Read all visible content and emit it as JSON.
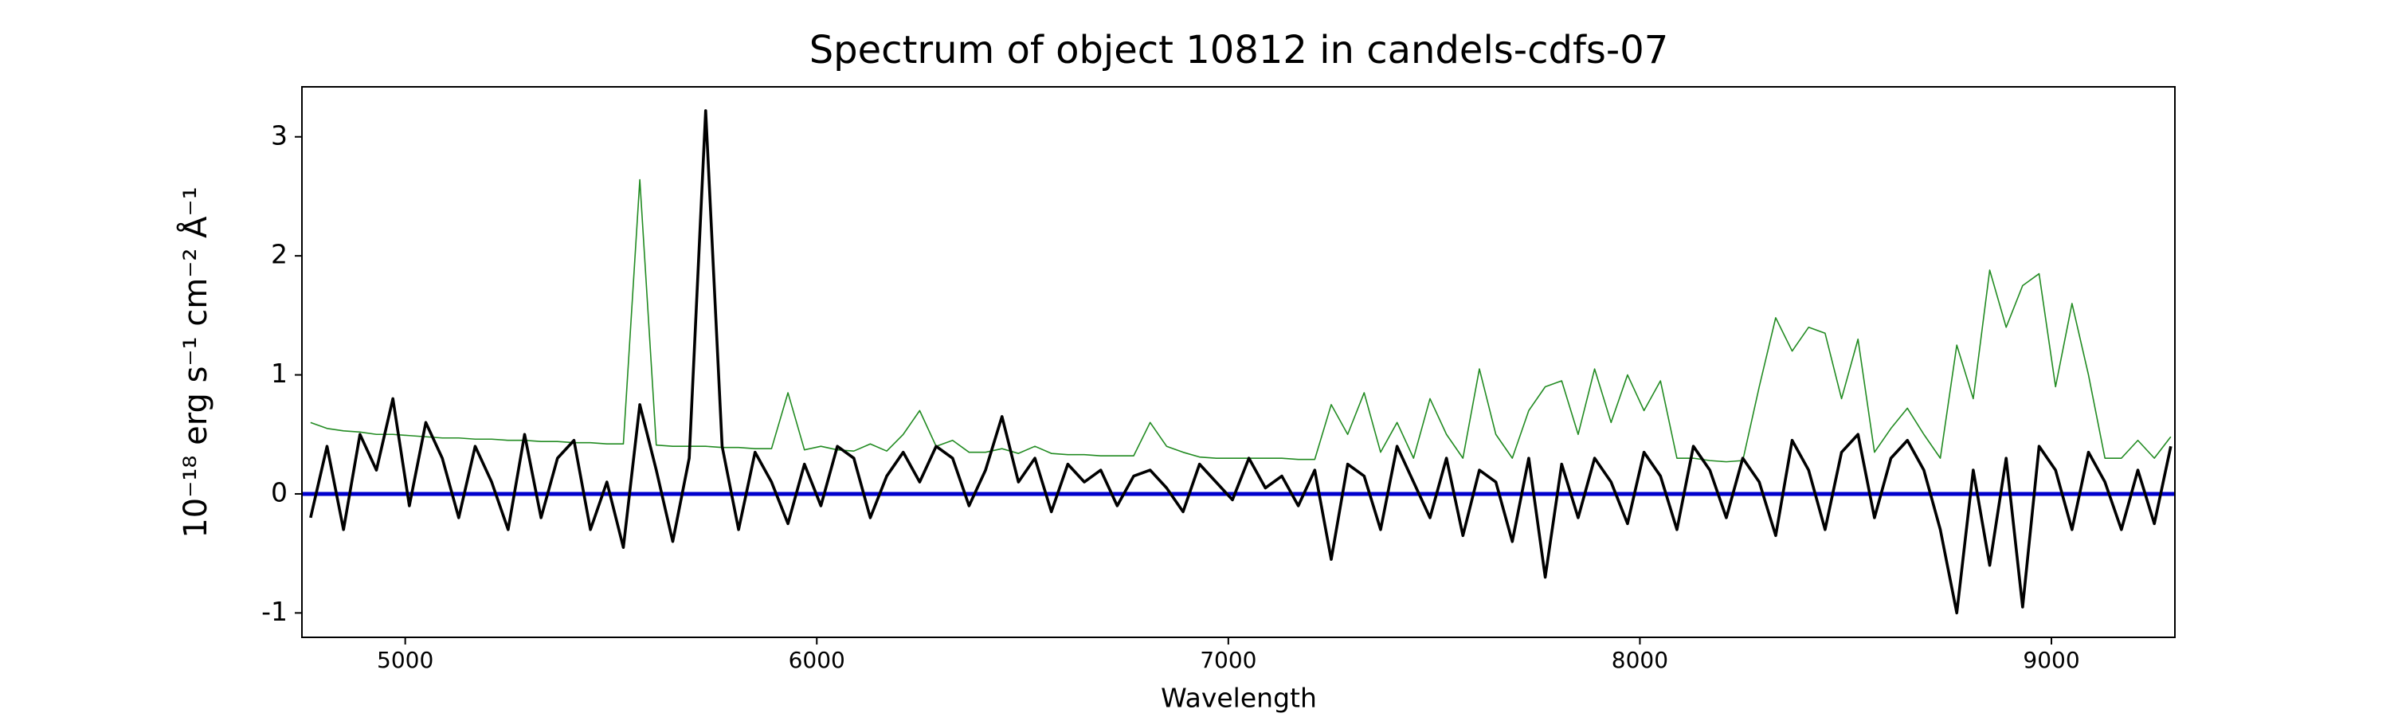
{
  "chart_data": {
    "type": "line",
    "title": "Spectrum of object 10812 in candels-cdfs-07",
    "x_label": "Wavelength",
    "y_label": "10⁻¹⁸ erg s⁻¹ cm⁻² Å⁻¹",
    "xlim": [
      4749,
      9300
    ],
    "ylim": [
      -1.205,
      3.42
    ],
    "xticks": [
      5000,
      6000,
      7000,
      8000,
      9000
    ],
    "yticks": [
      -1,
      0,
      1,
      2,
      3
    ],
    "hline": {
      "y": 0,
      "color": "#0000cc"
    },
    "x": [
      4770,
      4810,
      4850,
      4890,
      4930,
      4970,
      5010,
      5050,
      5090,
      5130,
      5170,
      5210,
      5250,
      5290,
      5330,
      5370,
      5410,
      5450,
      5490,
      5530,
      5570,
      5610,
      5650,
      5690,
      5730,
      5770,
      5810,
      5850,
      5890,
      5930,
      5970,
      6010,
      6050,
      6090,
      6130,
      6170,
      6210,
      6250,
      6290,
      6330,
      6370,
      6410,
      6450,
      6490,
      6530,
      6570,
      6610,
      6650,
      6690,
      6730,
      6770,
      6810,
      6850,
      6890,
      6930,
      6970,
      7010,
      7050,
      7090,
      7130,
      7170,
      7210,
      7250,
      7290,
      7330,
      7370,
      7410,
      7450,
      7490,
      7530,
      7570,
      7610,
      7650,
      7690,
      7730,
      7770,
      7810,
      7850,
      7890,
      7930,
      7970,
      8010,
      8050,
      8090,
      8130,
      8170,
      8210,
      8250,
      8290,
      8330,
      8370,
      8410,
      8450,
      8490,
      8530,
      8570,
      8610,
      8650,
      8690,
      8730,
      8770,
      8810,
      8850,
      8890,
      8930,
      8970,
      9010,
      9050,
      9090,
      9130,
      9170,
      9210,
      9250,
      9290
    ],
    "series": [
      {
        "color": "#228b22",
        "values": [
          0.6,
          0.55,
          0.53,
          0.52,
          0.5,
          0.5,
          0.49,
          0.48,
          0.47,
          0.47,
          0.46,
          0.46,
          0.45,
          0.45,
          0.44,
          0.44,
          0.43,
          0.43,
          0.42,
          0.42,
          2.64,
          0.41,
          0.4,
          0.4,
          0.4,
          0.39,
          0.39,
          0.38,
          0.38,
          0.85,
          0.37,
          0.4,
          0.37,
          0.36,
          0.42,
          0.36,
          0.5,
          0.7,
          0.4,
          0.45,
          0.35,
          0.35,
          0.38,
          0.34,
          0.4,
          0.34,
          0.33,
          0.33,
          0.32,
          0.32,
          0.32,
          0.6,
          0.4,
          0.35,
          0.31,
          0.3,
          0.3,
          0.3,
          0.3,
          0.3,
          0.29,
          0.29,
          0.75,
          0.5,
          0.85,
          0.35,
          0.6,
          0.3,
          0.8,
          0.5,
          0.3,
          1.05,
          0.5,
          0.3,
          0.7,
          0.9,
          0.95,
          0.5,
          1.05,
          0.6,
          1.0,
          0.7,
          0.95,
          0.3,
          0.3,
          0.28,
          0.27,
          0.28,
          0.9,
          1.48,
          1.2,
          1.4,
          1.35,
          0.8,
          1.3,
          0.35,
          0.55,
          0.72,
          0.5,
          0.3,
          1.25,
          0.8,
          1.88,
          1.4,
          1.75,
          1.85,
          0.9,
          1.6,
          1.0,
          0.3,
          0.3,
          0.45,
          0.3,
          0.48
        ]
      },
      {
        "color": "#000000",
        "values": [
          -0.2,
          0.4,
          -0.3,
          0.5,
          0.2,
          0.8,
          -0.1,
          0.6,
          0.3,
          -0.2,
          0.4,
          0.1,
          -0.3,
          0.5,
          -0.2,
          0.3,
          0.45,
          -0.3,
          0.1,
          -0.45,
          0.75,
          0.2,
          -0.4,
          0.3,
          3.22,
          0.4,
          -0.3,
          0.35,
          0.1,
          -0.25,
          0.25,
          -0.1,
          0.4,
          0.3,
          -0.2,
          0.15,
          0.35,
          0.1,
          0.4,
          0.3,
          -0.1,
          0.2,
          0.65,
          0.1,
          0.3,
          -0.15,
          0.25,
          0.1,
          0.2,
          -0.1,
          0.15,
          0.2,
          0.05,
          -0.15,
          0.25,
          0.1,
          -0.05,
          0.3,
          0.05,
          0.15,
          -0.1,
          0.2,
          -0.55,
          0.25,
          0.15,
          -0.3,
          0.4,
          0.1,
          -0.2,
          0.3,
          -0.35,
          0.2,
          0.1,
          -0.4,
          0.3,
          -0.7,
          0.25,
          -0.2,
          0.3,
          0.1,
          -0.25,
          0.35,
          0.15,
          -0.3,
          0.4,
          0.2,
          -0.2,
          0.3,
          0.1,
          -0.35,
          0.45,
          0.2,
          -0.3,
          0.35,
          0.5,
          -0.2,
          0.3,
          0.45,
          0.2,
          -0.3,
          -1.0,
          0.2,
          -0.6,
          0.3,
          -0.95,
          0.4,
          0.2,
          -0.3,
          0.35,
          0.1,
          -0.3,
          0.2,
          -0.25,
          0.4
        ]
      }
    ]
  }
}
